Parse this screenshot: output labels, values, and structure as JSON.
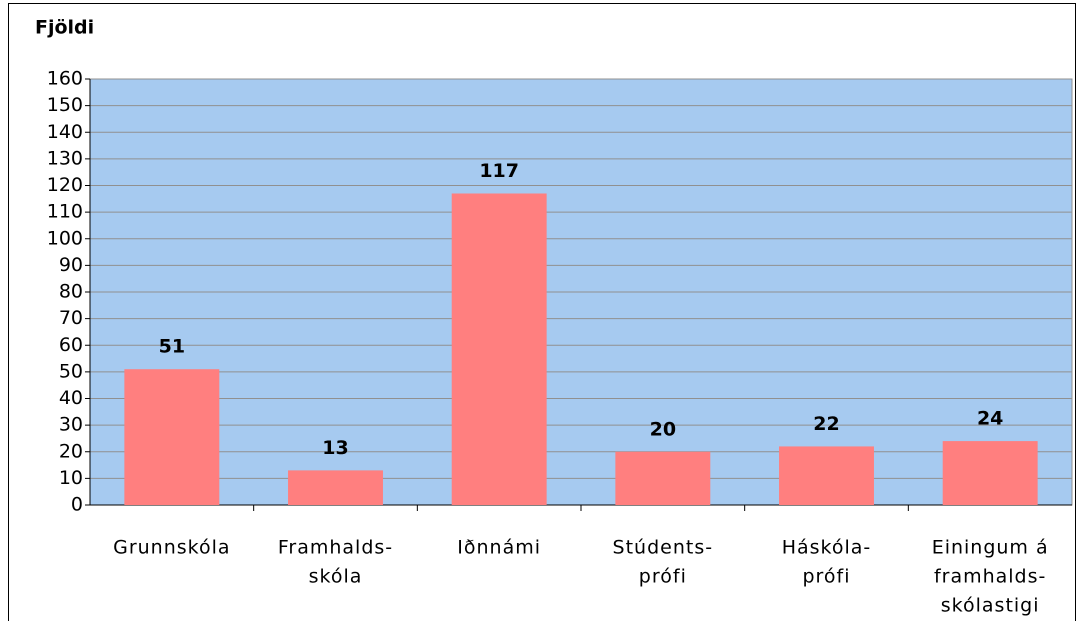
{
  "chart_data": {
    "type": "bar",
    "title": "Fjöldi",
    "categories": [
      [
        "Grunnskóla"
      ],
      [
        "Framhalds-",
        "skóla"
      ],
      [
        "Iðnnámi"
      ],
      [
        "Stúdents-",
        "prófi"
      ],
      [
        "Háskóla-",
        "prófi"
      ],
      [
        "Einingum á",
        "framhalds-",
        "skólastigi"
      ]
    ],
    "values": [
      51,
      13,
      117,
      20,
      22,
      24
    ],
    "color": "#ff7f7f",
    "plot_background": "#a6caf0",
    "ylim": [
      0,
      160
    ],
    "yticks": [
      0,
      10,
      20,
      30,
      40,
      50,
      60,
      70,
      80,
      90,
      100,
      110,
      120,
      130,
      140,
      150,
      160
    ],
    "grid": true
  }
}
